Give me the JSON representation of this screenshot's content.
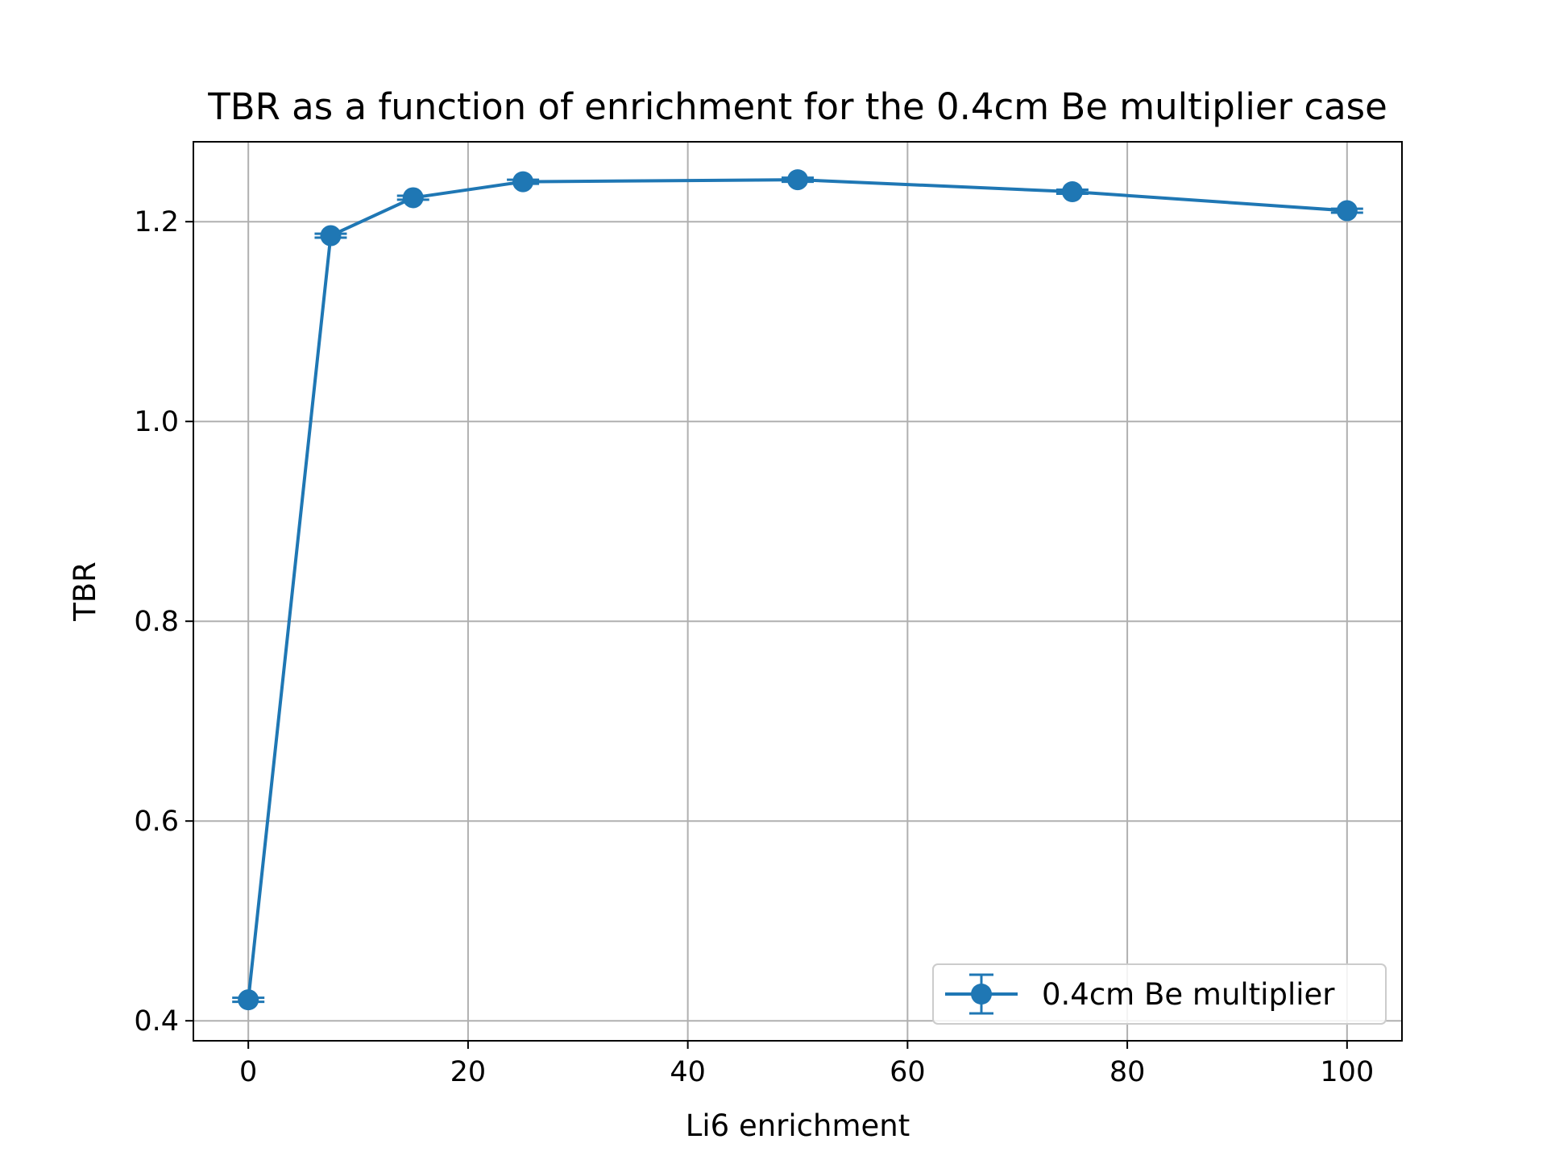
{
  "chart_data": {
    "type": "line",
    "title": "TBR as a function of enrichment for the 0.4cm Be multiplier case",
    "xlabel": "Li6 enrichment",
    "ylabel": "TBR",
    "xlim": [
      -5,
      105
    ],
    "ylim": [
      0.38,
      1.28
    ],
    "x_ticks": [
      0,
      20,
      40,
      60,
      80,
      100
    ],
    "y_ticks": [
      0.4,
      0.6,
      0.8,
      1.0,
      1.2
    ],
    "x_tick_labels": [
      "0",
      "20",
      "40",
      "60",
      "80",
      "100"
    ],
    "y_tick_labels": [
      "0.4",
      "0.6",
      "0.8",
      "1.0",
      "1.2"
    ],
    "grid": true,
    "legend_position": "bottom-right",
    "series": [
      {
        "name": "0.4cm Be multiplier",
        "color": "#1f77b4",
        "marker": "circle",
        "error_bars": true,
        "x": [
          0,
          7.5,
          15,
          25,
          50,
          75,
          100
        ],
        "y": [
          0.421,
          1.186,
          1.224,
          1.24,
          1.242,
          1.23,
          1.211
        ],
        "yerr": [
          0.002,
          0.002,
          0.002,
          0.002,
          0.002,
          0.002,
          0.002
        ]
      }
    ]
  }
}
